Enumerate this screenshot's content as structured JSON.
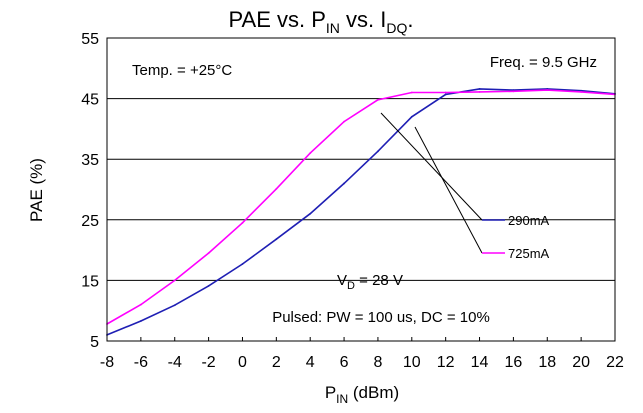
{
  "chart_data": {
    "type": "line",
    "title": {
      "main": "PAE vs. P",
      "sub1": "IN",
      "mid": " vs. I",
      "sub2": "DQ",
      "end": "."
    },
    "xlabel": {
      "main": "P",
      "sub": "IN",
      "rest": " (dBm)"
    },
    "ylabel": "PAE (%)",
    "xlim": [
      -8,
      22
    ],
    "ylim": [
      5,
      55
    ],
    "xticks": [
      -8,
      -6,
      -4,
      -2,
      0,
      2,
      4,
      6,
      8,
      10,
      12,
      14,
      16,
      18,
      20,
      22
    ],
    "yticks": [
      5,
      15,
      25,
      35,
      45,
      55
    ],
    "grid": "horizontal",
    "annotations": {
      "temp": "Temp. = +25°C",
      "freq": "Freq. = 9.5 GHz",
      "vd": {
        "main": "V",
        "sub": "D",
        "rest": " = 28 V"
      },
      "pulsed": "Pulsed: PW = 100 us, DC = 10%"
    },
    "series": [
      {
        "name": "290mA",
        "color": "#1f1fb4",
        "x": [
          -8,
          -6,
          -4,
          -2,
          0,
          2,
          4,
          6,
          8,
          10,
          12,
          14,
          16,
          18,
          20,
          22
        ],
        "values": [
          6.0,
          8.3,
          10.9,
          14.1,
          17.7,
          21.8,
          26.0,
          31.0,
          36.3,
          42.0,
          45.7,
          46.6,
          46.4,
          46.6,
          46.3,
          45.8
        ]
      },
      {
        "name": "725mA",
        "color": "#ff00ff",
        "x": [
          -8,
          -6,
          -4,
          -2,
          0,
          2,
          4,
          6,
          8,
          10,
          12,
          14,
          16,
          18,
          20,
          22
        ],
        "values": [
          7.8,
          11.0,
          15.0,
          19.5,
          24.5,
          30.1,
          36.0,
          41.2,
          44.8,
          46.0,
          46.0,
          46.1,
          46.2,
          46.4,
          46.1,
          45.7
        ]
      }
    ]
  }
}
